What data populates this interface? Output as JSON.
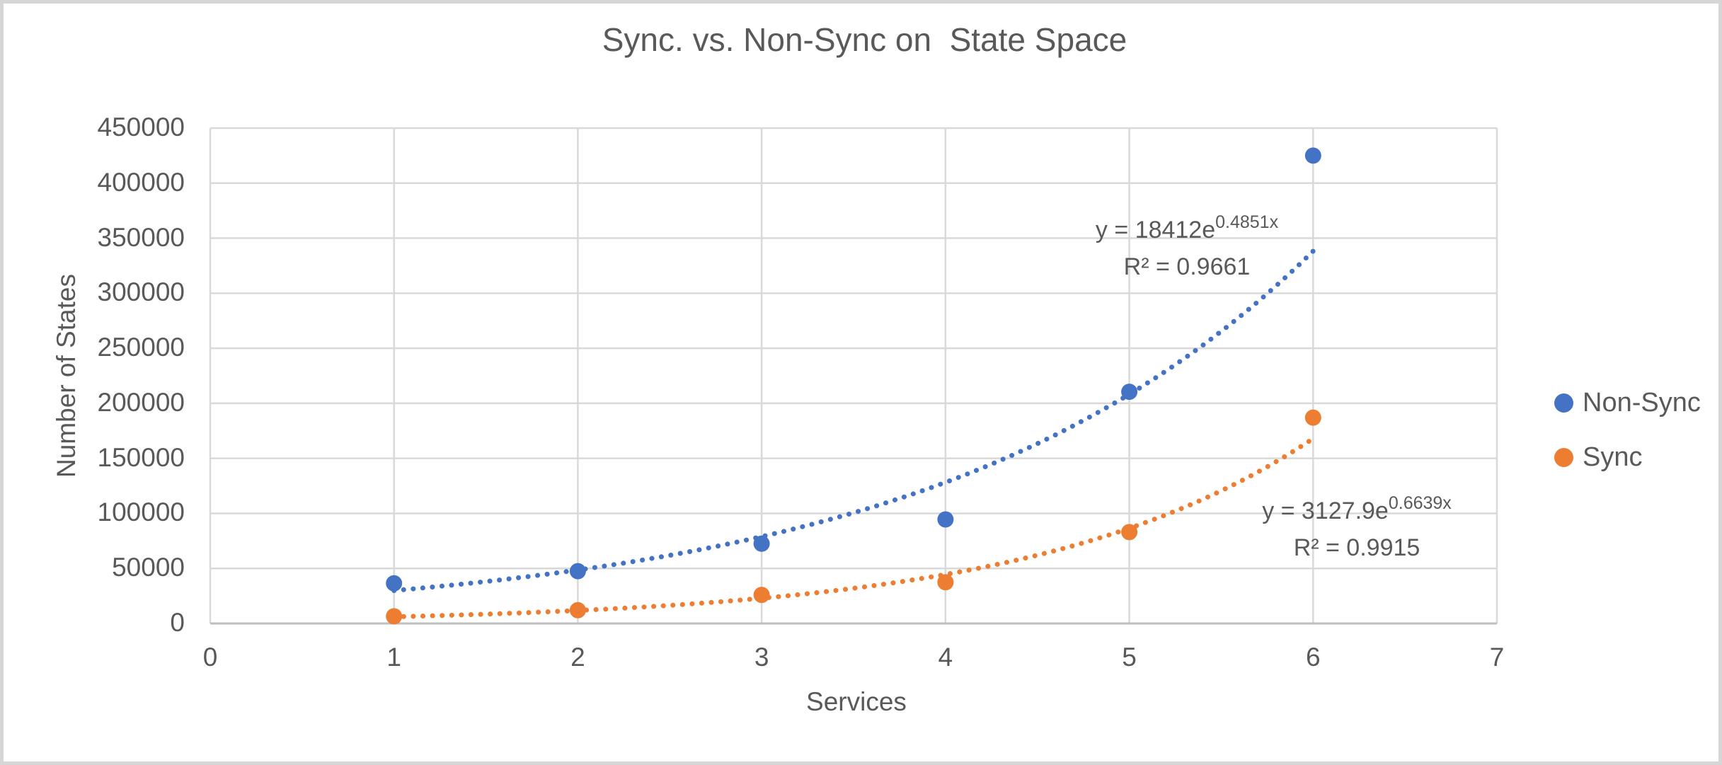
{
  "page": {
    "background_color": "#ffffff",
    "frame_border_color": "#d6d6d6"
  },
  "chart_data": {
    "type": "scatter",
    "title": "Sync. vs. Non-Sync on  State Space",
    "xlabel": "Services",
    "ylabel": "Number of States",
    "xlim": [
      0,
      7
    ],
    "ylim": [
      0,
      450000
    ],
    "x_ticks": [
      0,
      1,
      2,
      3,
      4,
      5,
      6,
      7
    ],
    "y_ticks": [
      0,
      50000,
      100000,
      150000,
      200000,
      250000,
      300000,
      350000,
      400000,
      450000
    ],
    "grid": true,
    "gridline_color": "#d9d9d9",
    "axis_line_color": "#bfbfbf",
    "text_color": "#595959",
    "legend_position": "right",
    "series": [
      {
        "name": "Non-Sync",
        "color": "#4472c4",
        "x": [
          1,
          2,
          3,
          4,
          5,
          6
        ],
        "y": [
          36500,
          47500,
          72500,
          94500,
          210500,
          425000
        ],
        "trendline": {
          "type": "exponential",
          "a": 18412,
          "b": 0.4851,
          "x_start": 1,
          "x_end": 6,
          "equation_base": "y = 18412e",
          "equation_exponent": "0.4851x",
          "r_squared_label": "R² = 0.9661",
          "r_squared": 0.9661
        }
      },
      {
        "name": "Sync",
        "color": "#ed7d31",
        "x": [
          1,
          2,
          3,
          4,
          5,
          6
        ],
        "y": [
          6500,
          12000,
          26000,
          37500,
          83000,
          187000
        ],
        "trendline": {
          "type": "exponential",
          "a": 3127.9,
          "b": 0.6639,
          "x_start": 1,
          "x_end": 6,
          "equation_base": "y = 3127.9e",
          "equation_exponent": "0.6639x",
          "r_squared_label": "R² = 0.9915",
          "r_squared": 0.9915
        }
      }
    ]
  }
}
